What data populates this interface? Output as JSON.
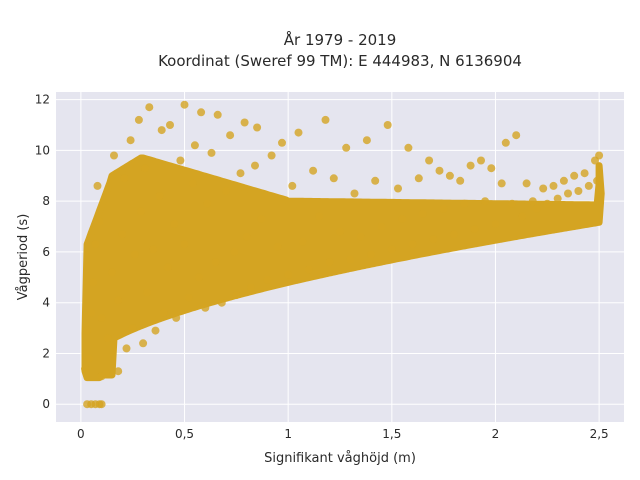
{
  "chart_data": {
    "type": "scatter",
    "title_line1": "År 1979 - 2019",
    "title_line2": "Koordinat (Sweref 99 TM): E 444983, N 6136904",
    "xlabel": "Signifikant våghöjd (m)",
    "ylabel": "Vågperiod (s)",
    "xlim": [
      -0.12,
      2.62
    ],
    "ylim": [
      -0.7,
      12.3
    ],
    "x_ticks": [
      0,
      0.5,
      1,
      1.5,
      2,
      2.5
    ],
    "x_tick_labels": [
      "0",
      "0,5",
      "1",
      "1,5",
      "2",
      "2,5"
    ],
    "y_ticks": [
      0,
      2,
      4,
      6,
      8,
      10,
      12
    ],
    "y_tick_labels": [
      "0",
      "2",
      "4",
      "6",
      "8",
      "10",
      "12"
    ],
    "grid": true,
    "marker_color": "#D4A422",
    "plot_background": "#E5E5EF",
    "series": [
      {
        "points": [
          [
            0.03,
            0
          ],
          [
            0.05,
            0
          ],
          [
            0.07,
            0
          ],
          [
            0.09,
            0
          ],
          [
            0.1,
            0
          ],
          [
            0.02,
            1.4
          ],
          [
            0.03,
            2.9
          ],
          [
            0.04,
            1.8
          ],
          [
            0.05,
            3.6
          ],
          [
            0.06,
            4.8
          ],
          [
            0.07,
            6.3
          ],
          [
            0.08,
            8.6
          ],
          [
            0.09,
            7.2
          ],
          [
            0.1,
            1.1
          ],
          [
            0.1,
            3.4
          ],
          [
            0.12,
            1.2
          ],
          [
            0.13,
            2.6
          ],
          [
            0.15,
            5.2
          ],
          [
            0.16,
            9.8
          ],
          [
            0.18,
            1.3
          ],
          [
            0.18,
            4.1
          ],
          [
            0.2,
            6.7
          ],
          [
            0.21,
            8.9
          ],
          [
            0.22,
            2.2
          ],
          [
            0.24,
            10.4
          ],
          [
            0.25,
            3.0
          ],
          [
            0.26,
            5.9
          ],
          [
            0.28,
            11.2
          ],
          [
            0.29,
            7.6
          ],
          [
            0.3,
            2.4
          ],
          [
            0.31,
            9.3
          ],
          [
            0.32,
            4.4
          ],
          [
            0.33,
            11.7
          ],
          [
            0.35,
            6.1
          ],
          [
            0.36,
            2.9
          ],
          [
            0.38,
            8.2
          ],
          [
            0.39,
            10.8
          ],
          [
            0.4,
            3.6
          ],
          [
            0.42,
            5.4
          ],
          [
            0.43,
            11.0
          ],
          [
            0.45,
            7.1
          ],
          [
            0.46,
            3.4
          ],
          [
            0.48,
            9.6
          ],
          [
            0.5,
            6.3
          ],
          [
            0.5,
            11.8
          ],
          [
            0.52,
            4.2
          ],
          [
            0.54,
            8.7
          ],
          [
            0.55,
            10.2
          ],
          [
            0.57,
            5.0
          ],
          [
            0.58,
            11.5
          ],
          [
            0.6,
            3.8
          ],
          [
            0.61,
            7.9
          ],
          [
            0.63,
            9.9
          ],
          [
            0.65,
            5.6
          ],
          [
            0.66,
            11.4
          ],
          [
            0.68,
            4.0
          ],
          [
            0.7,
            8.4
          ],
          [
            0.72,
            10.6
          ],
          [
            0.74,
            6.0
          ],
          [
            0.75,
            4.3
          ],
          [
            0.77,
            9.1
          ],
          [
            0.79,
            11.1
          ],
          [
            0.8,
            6.6
          ],
          [
            0.82,
            4.6
          ],
          [
            0.84,
            9.4
          ],
          [
            0.85,
            10.9
          ],
          [
            0.87,
            7.3
          ],
          [
            0.9,
            4.9
          ],
          [
            0.92,
            9.8
          ],
          [
            0.95,
            6.2
          ],
          [
            0.97,
            10.3
          ],
          [
            1.0,
            5.1
          ],
          [
            1.02,
            8.6
          ],
          [
            1.05,
            10.7
          ],
          [
            1.07,
            6.4
          ],
          [
            1.1,
            5.3
          ],
          [
            1.12,
            9.2
          ],
          [
            1.15,
            7.4
          ],
          [
            1.18,
            11.2
          ],
          [
            1.2,
            5.6
          ],
          [
            1.22,
            8.9
          ],
          [
            1.25,
            6.8
          ],
          [
            1.28,
            10.1
          ],
          [
            1.3,
            5.7
          ],
          [
            1.32,
            8.3
          ],
          [
            1.35,
            6.6
          ],
          [
            1.38,
            10.4
          ],
          [
            1.4,
            5.9
          ],
          [
            1.42,
            8.8
          ],
          [
            1.45,
            7.0
          ],
          [
            1.48,
            11.0
          ],
          [
            1.5,
            6.1
          ],
          [
            1.53,
            8.5
          ],
          [
            1.55,
            7.3
          ],
          [
            1.58,
            10.1
          ],
          [
            1.6,
            6.3
          ],
          [
            1.63,
            8.9
          ],
          [
            1.65,
            7.5
          ],
          [
            1.68,
            9.6
          ],
          [
            1.7,
            6.5
          ],
          [
            1.73,
            9.2
          ],
          [
            1.75,
            7.7
          ],
          [
            1.78,
            9.0
          ],
          [
            1.8,
            6.7
          ],
          [
            1.83,
            8.8
          ],
          [
            1.85,
            7.9
          ],
          [
            1.88,
            9.4
          ],
          [
            1.9,
            6.9
          ],
          [
            1.93,
            9.6
          ],
          [
            1.95,
            8.0
          ],
          [
            1.98,
            9.3
          ],
          [
            2.0,
            7.1
          ],
          [
            2.03,
            8.7
          ],
          [
            2.05,
            10.3
          ],
          [
            2.08,
            7.9
          ],
          [
            2.1,
            10.6
          ],
          [
            2.13,
            7.4
          ],
          [
            2.15,
            8.7
          ],
          [
            2.18,
            8.0
          ],
          [
            2.2,
            7.7
          ],
          [
            2.23,
            8.5
          ],
          [
            2.25,
            7.9
          ],
          [
            2.28,
            8.6
          ],
          [
            2.3,
            8.1
          ],
          [
            2.33,
            8.8
          ],
          [
            2.35,
            8.3
          ],
          [
            2.38,
            9.0
          ],
          [
            2.4,
            8.4
          ],
          [
            2.43,
            9.1
          ],
          [
            2.45,
            8.6
          ],
          [
            2.48,
            9.6
          ],
          [
            2.49,
            8.8
          ],
          [
            2.5,
            9.8
          ]
        ]
      }
    ]
  }
}
